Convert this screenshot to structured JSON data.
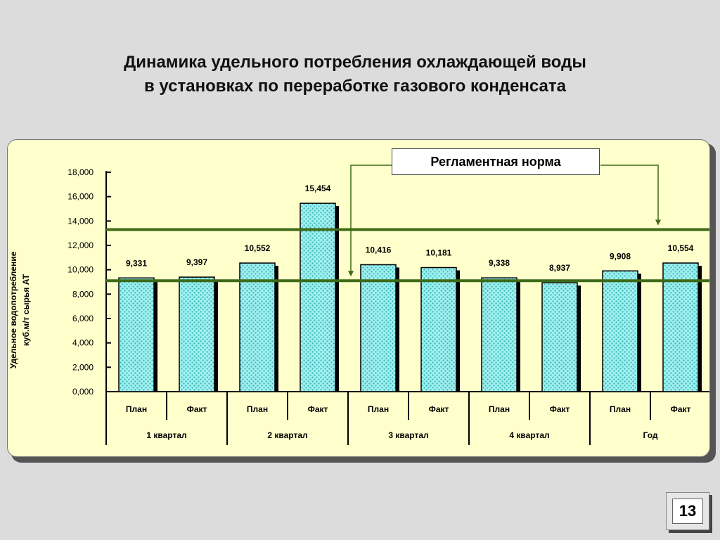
{
  "title": {
    "line1": "Динамика удельного потребления охлаждающей воды",
    "line2": "в установках по переработке газового конденсата"
  },
  "norm_label": "Регламентная норма",
  "page_number": "13",
  "colors": {
    "bar_fill": "#9ff0f0",
    "bar_dots": "#3ab3b3",
    "norm_line": "#3d6b17",
    "panel_bg": "#ffffcc"
  },
  "chart_data": {
    "type": "bar",
    "ylabel_line1": "Удельное водопотребление",
    "ylabel_line2": "куб.м/т сырья АТ",
    "ylim": [
      0,
      18
    ],
    "yticks": [
      "0,000",
      "2,000",
      "4,000",
      "6,000",
      "8,000",
      "10,000",
      "12,000",
      "14,000",
      "16,000",
      "18,000"
    ],
    "categories": [
      "План",
      "Факт",
      "План",
      "Факт",
      "План",
      "Факт",
      "План",
      "Факт",
      "План",
      "Факт"
    ],
    "values": [
      9.331,
      9.397,
      10.552,
      15.454,
      10.416,
      10.181,
      9.338,
      8.937,
      9.908,
      10.554
    ],
    "value_labels": [
      "9,331",
      "9,397",
      "10,552",
      "15,454",
      "10,416",
      "10,181",
      "9,338",
      "8,937",
      "9,908",
      "10,554"
    ],
    "groups": [
      "1 квартал",
      "2 квартал",
      "3 квартал",
      "4 квартал",
      "Год"
    ],
    "norm_lines": [
      9.1,
      13.3
    ],
    "grid": false,
    "legend": "none"
  }
}
